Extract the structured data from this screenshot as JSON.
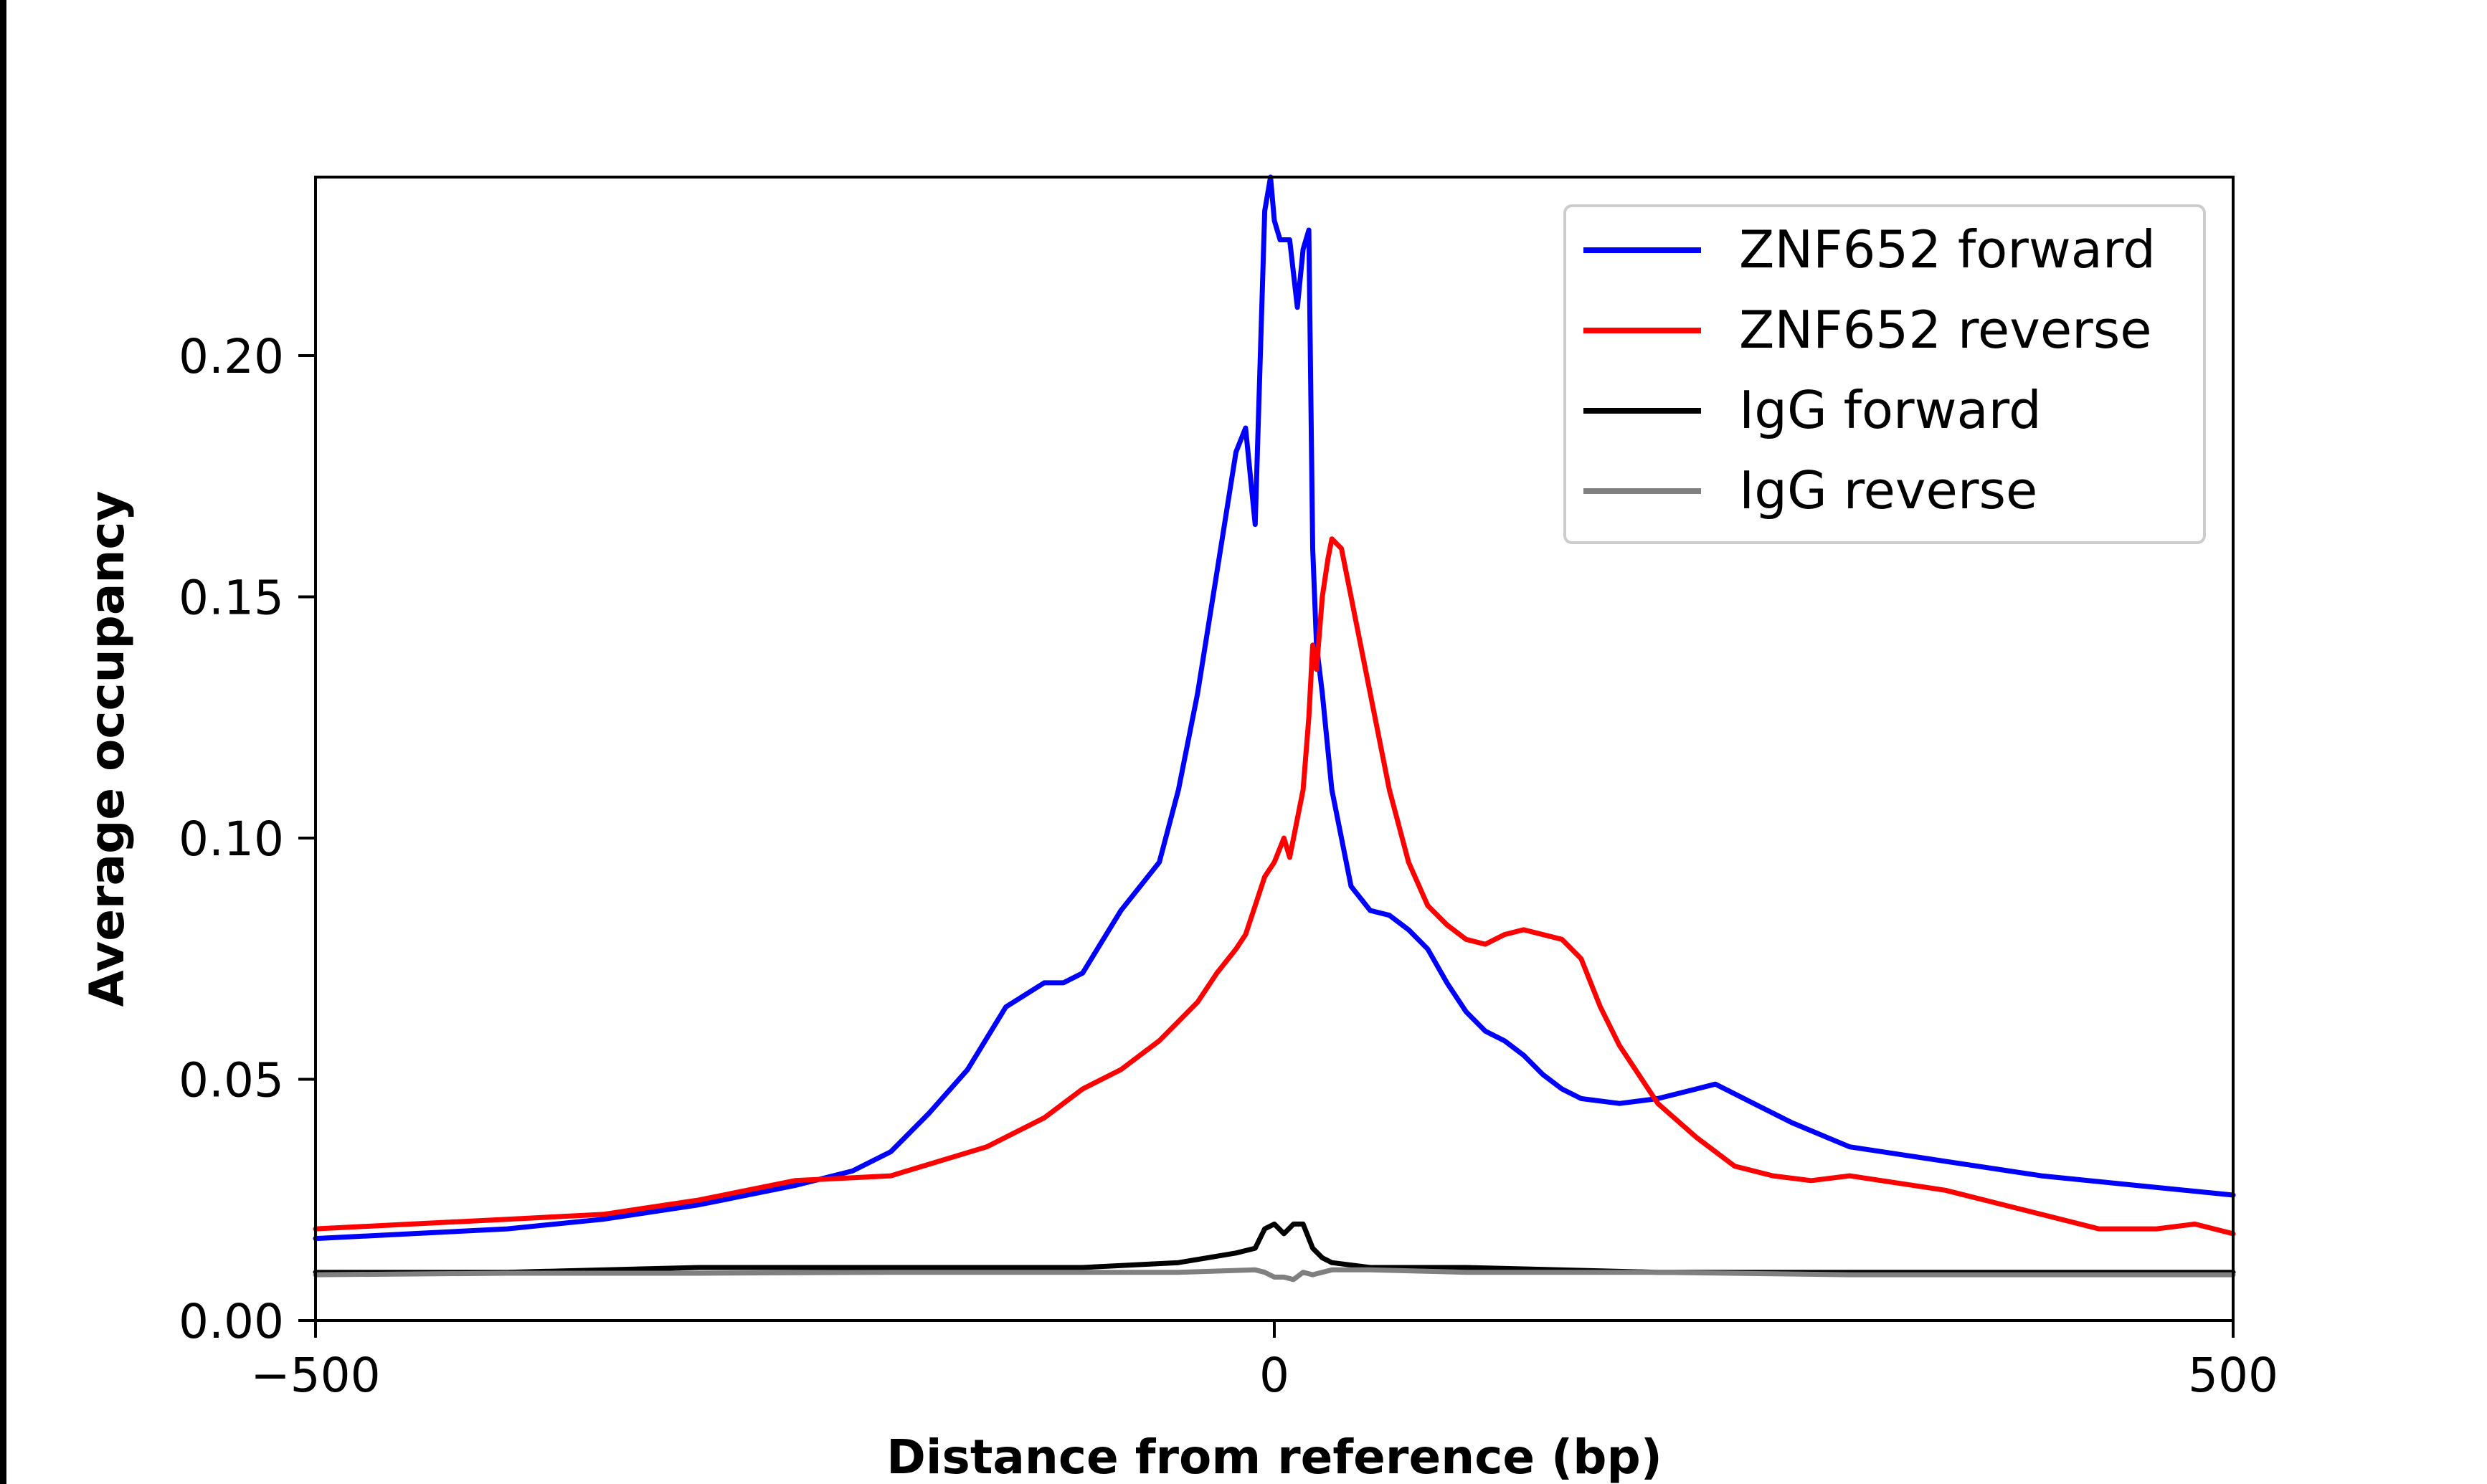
{
  "chart_data": {
    "type": "line",
    "title": "",
    "xlabel": "Distance from reference (bp)",
    "ylabel": "Average occupancy",
    "xlim": [
      -500,
      500
    ],
    "ylim": [
      0,
      0.237
    ],
    "xticks": [
      -500,
      0,
      500
    ],
    "xtick_labels": [
      "−500",
      "0",
      "500"
    ],
    "yticks": [
      0,
      0.05,
      0.1,
      0.15,
      0.2
    ],
    "ytick_labels": [
      "0.00",
      "0.05",
      "0.10",
      "0.15",
      "0.20"
    ],
    "grid": false,
    "legend_position": "top-right",
    "series": [
      {
        "name": "ZNF652 forward",
        "color": "#0000ff",
        "x": [
          -500,
          -450,
          -400,
          -350,
          -300,
          -250,
          -220,
          -200,
          -180,
          -160,
          -140,
          -120,
          -110,
          -100,
          -80,
          -60,
          -50,
          -40,
          -30,
          -20,
          -15,
          -10,
          -5,
          -2,
          0,
          3,
          8,
          12,
          15,
          18,
          20,
          22,
          25,
          30,
          40,
          50,
          60,
          70,
          80,
          90,
          100,
          110,
          120,
          130,
          140,
          150,
          160,
          180,
          200,
          220,
          230,
          240,
          250,
          270,
          300,
          350,
          400,
          450,
          500
        ],
        "y": [
          0.017,
          0.018,
          0.019,
          0.021,
          0.024,
          0.028,
          0.031,
          0.035,
          0.043,
          0.052,
          0.065,
          0.07,
          0.07,
          0.072,
          0.085,
          0.095,
          0.11,
          0.13,
          0.155,
          0.18,
          0.185,
          0.165,
          0.23,
          0.237,
          0.228,
          0.224,
          0.224,
          0.21,
          0.222,
          0.226,
          0.16,
          0.14,
          0.13,
          0.11,
          0.09,
          0.085,
          0.084,
          0.081,
          0.077,
          0.07,
          0.064,
          0.06,
          0.058,
          0.055,
          0.051,
          0.048,
          0.046,
          0.045,
          0.046,
          0.048,
          0.049,
          0.047,
          0.045,
          0.041,
          0.036,
          0.033,
          0.03,
          0.028,
          0.026
        ]
      },
      {
        "name": "ZNF652 reverse",
        "color": "#ff0000",
        "x": [
          -500,
          -450,
          -400,
          -350,
          -300,
          -250,
          -200,
          -150,
          -120,
          -100,
          -80,
          -60,
          -40,
          -30,
          -20,
          -15,
          -10,
          -5,
          0,
          5,
          8,
          12,
          15,
          18,
          20,
          22,
          25,
          28,
          30,
          35,
          40,
          50,
          60,
          70,
          80,
          90,
          100,
          110,
          120,
          130,
          150,
          160,
          170,
          180,
          200,
          220,
          240,
          260,
          280,
          300,
          350,
          400,
          430,
          460,
          480,
          500
        ],
        "y": [
          0.019,
          0.02,
          0.021,
          0.022,
          0.025,
          0.029,
          0.03,
          0.036,
          0.042,
          0.048,
          0.052,
          0.058,
          0.066,
          0.072,
          0.077,
          0.08,
          0.086,
          0.092,
          0.095,
          0.1,
          0.096,
          0.104,
          0.11,
          0.125,
          0.14,
          0.135,
          0.15,
          0.158,
          0.162,
          0.16,
          0.15,
          0.13,
          0.11,
          0.095,
          0.086,
          0.082,
          0.079,
          0.078,
          0.08,
          0.081,
          0.079,
          0.075,
          0.065,
          0.057,
          0.045,
          0.038,
          0.032,
          0.03,
          0.029,
          0.03,
          0.027,
          0.022,
          0.019,
          0.019,
          0.02,
          0.018
        ]
      },
      {
        "name": "IgG forward",
        "color": "#000000",
        "x": [
          -500,
          -400,
          -300,
          -200,
          -100,
          -50,
          -20,
          -10,
          -5,
          0,
          5,
          10,
          15,
          20,
          25,
          30,
          50,
          100,
          200,
          300,
          400,
          500
        ],
        "y": [
          0.01,
          0.01,
          0.011,
          0.011,
          0.011,
          0.012,
          0.014,
          0.015,
          0.019,
          0.02,
          0.018,
          0.02,
          0.02,
          0.015,
          0.013,
          0.012,
          0.011,
          0.011,
          0.01,
          0.01,
          0.01,
          0.01
        ]
      },
      {
        "name": "IgG reverse",
        "color": "#808080",
        "x": [
          -500,
          -400,
          -300,
          -200,
          -100,
          -50,
          -10,
          -5,
          0,
          5,
          10,
          15,
          20,
          30,
          50,
          100,
          200,
          300,
          400,
          500
        ],
        "y": [
          0.0095,
          0.0098,
          0.0098,
          0.01,
          0.01,
          0.01,
          0.0105,
          0.01,
          0.009,
          0.009,
          0.0085,
          0.01,
          0.0095,
          0.0105,
          0.0105,
          0.01,
          0.01,
          0.0095,
          0.0095,
          0.0095
        ]
      }
    ]
  }
}
